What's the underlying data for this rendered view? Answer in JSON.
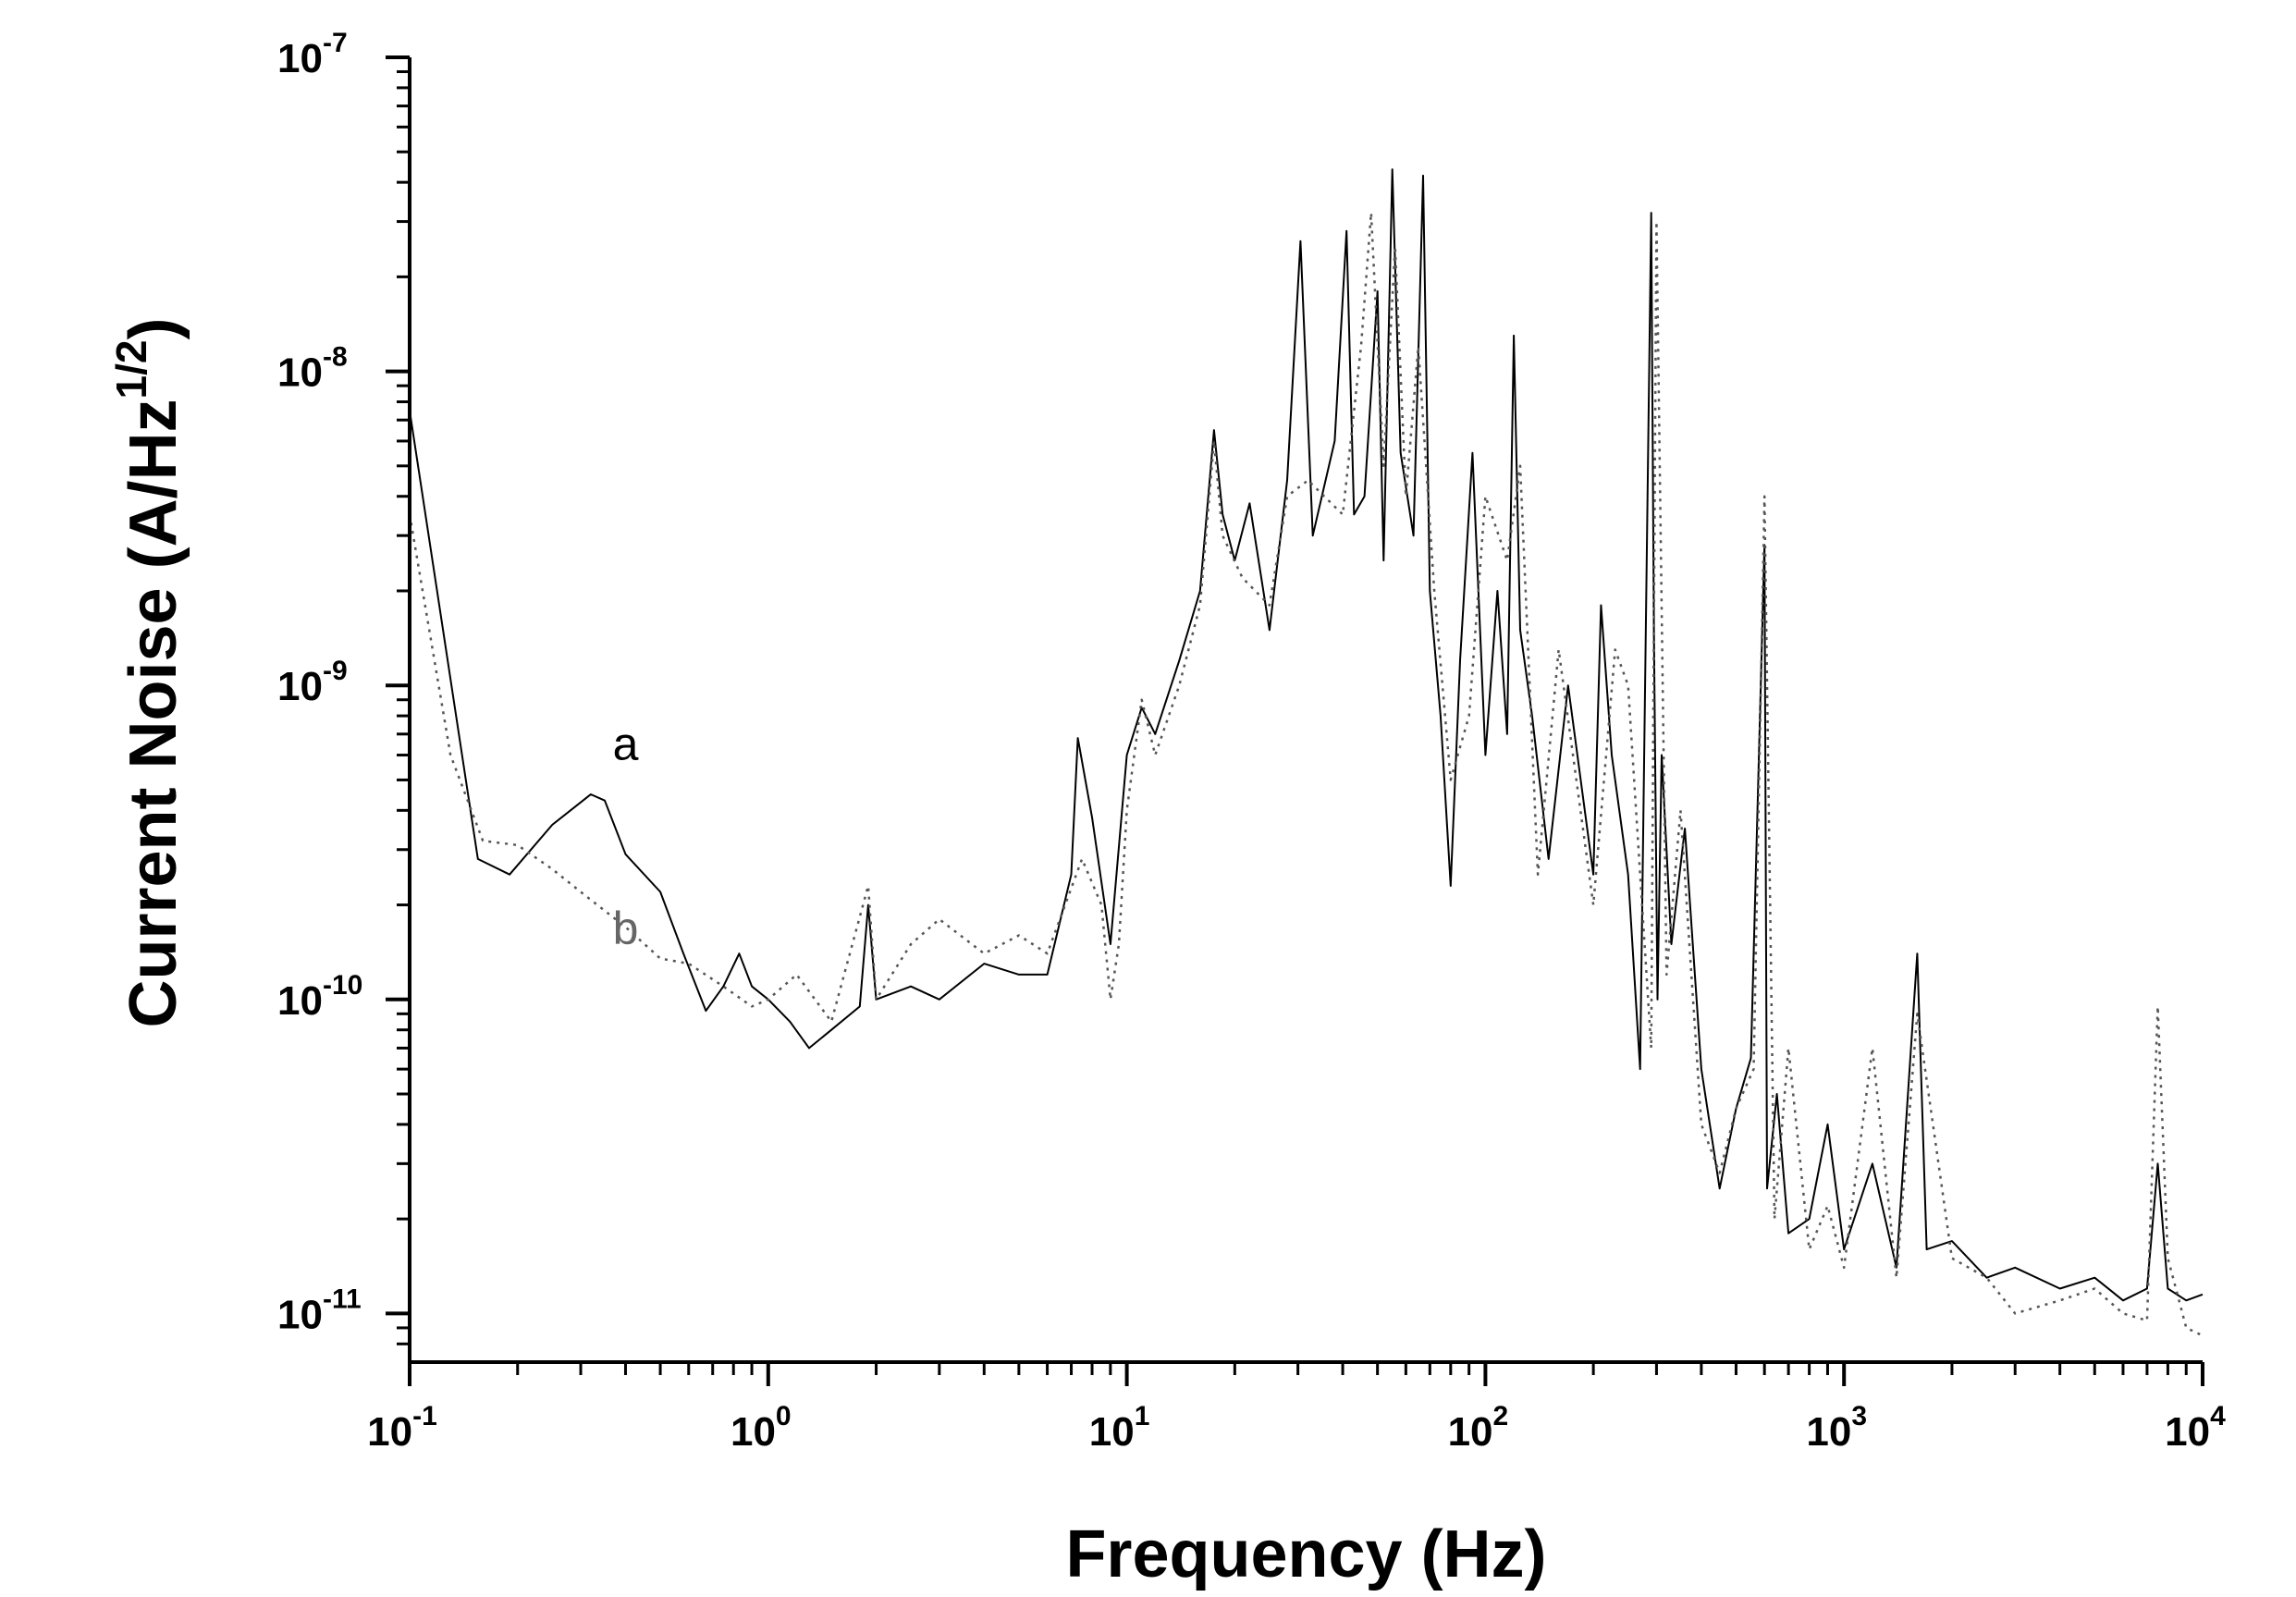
{
  "chart_data": {
    "type": "line",
    "title": "",
    "xlabel": "Frequency (Hz)",
    "ylabel": {
      "main": "Current Noise (A/Hz",
      "sup": "1/2",
      "close": ")"
    },
    "xscale": "log",
    "yscale": "log",
    "xlim": [
      0.1,
      10000
    ],
    "ylim": [
      7e-12,
      1e-07
    ],
    "grid": false,
    "legend": "none",
    "xticks": [
      {
        "value": 0.1,
        "base": "10",
        "exp": "-1"
      },
      {
        "value": 1,
        "base": "10",
        "exp": "0"
      },
      {
        "value": 10,
        "base": "10",
        "exp": "1"
      },
      {
        "value": 100,
        "base": "10",
        "exp": "2"
      },
      {
        "value": 1000,
        "base": "10",
        "exp": "3"
      },
      {
        "value": 10000,
        "base": "10",
        "exp": "4"
      }
    ],
    "yticks": [
      {
        "value": 1e-11,
        "base": "10",
        "exp": "-11"
      },
      {
        "value": 1e-10,
        "base": "10",
        "exp": "-10"
      },
      {
        "value": 1e-09,
        "base": "10",
        "exp": "-9"
      },
      {
        "value": 1e-08,
        "base": "10",
        "exp": "-8"
      },
      {
        "value": 1e-07,
        "base": "10",
        "exp": "-7"
      }
    ],
    "annotations": [
      {
        "text": "a",
        "x": 0.4,
        "y": 5.8e-10,
        "color": "#000000"
      },
      {
        "text": "b",
        "x": 0.4,
        "y": 1.5e-10,
        "color": "#666666"
      }
    ],
    "series": [
      {
        "name": "a",
        "style": "solid",
        "color": "#000000",
        "x": [
          0.1,
          0.155,
          0.19,
          0.25,
          0.32,
          0.35,
          0.4,
          0.5,
          0.58,
          0.67,
          0.75,
          0.83,
          0.9,
          1.0,
          1.15,
          1.3,
          1.5,
          1.8,
          1.9,
          2.0,
          2.5,
          3.0,
          4.0,
          5.0,
          6.0,
          7.0,
          7.3,
          8.0,
          9.0,
          10,
          11,
          12,
          14,
          16,
          17.5,
          18.5,
          20,
          22,
          25,
          28,
          30.5,
          33,
          38,
          41,
          43,
          46,
          50,
          52,
          55,
          58,
          63,
          67,
          70,
          75,
          80,
          85,
          92,
          100,
          108,
          115,
          120,
          125,
          135,
          150,
          170,
          200,
          210,
          225,
          250,
          270,
          290,
          295,
          302,
          310,
          330,
          360,
          400,
          450,
          500,
          550,
          600,
          610,
          650,
          700,
          800,
          900,
          1000,
          1200,
          1400,
          1600,
          1700,
          2000,
          2500,
          3000,
          4000,
          5000,
          6000,
          7000,
          7500,
          8000,
          9000,
          10000
        ],
        "y": [
          7.5e-09,
          2.8e-10,
          2.5e-10,
          3.6e-10,
          4.5e-10,
          4.3e-10,
          2.9e-10,
          2.2e-10,
          1.4e-10,
          9.2e-11,
          1.1e-10,
          1.4e-10,
          1.1e-10,
          1e-10,
          8.5e-11,
          7e-11,
          8e-11,
          9.5e-11,
          2e-10,
          1e-10,
          1.1e-10,
          1e-10,
          1.3e-10,
          1.2e-10,
          1.2e-10,
          2.5e-10,
          6.8e-10,
          3.8e-10,
          1.5e-10,
          6e-10,
          8.5e-10,
          7e-10,
          1.2e-09,
          2e-09,
          6.5e-09,
          3.5e-09,
          2.5e-09,
          3.8e-09,
          1.5e-09,
          4.5e-09,
          2.6e-08,
          3e-09,
          6e-09,
          2.8e-08,
          3.5e-09,
          4e-09,
          1.8e-08,
          2.5e-09,
          4.4e-08,
          5.5e-09,
          3e-09,
          4.2e-08,
          2e-09,
          8e-10,
          2.3e-10,
          1.2e-09,
          5.5e-09,
          6e-10,
          2e-09,
          7e-10,
          1.3e-08,
          1.5e-09,
          8e-10,
          2.8e-10,
          1e-09,
          2.5e-10,
          1.8e-09,
          6e-10,
          2.5e-10,
          6e-11,
          3.2e-08,
          1.5e-09,
          1e-10,
          6e-10,
          1.5e-10,
          3.5e-10,
          6e-11,
          2.5e-11,
          4.5e-11,
          6.5e-11,
          2.8e-09,
          2.5e-11,
          5e-11,
          1.8e-11,
          2e-11,
          4e-11,
          1.6e-11,
          3e-11,
          1.4e-11,
          1.4e-10,
          1.6e-11,
          1.7e-11,
          1.3e-11,
          1.4e-11,
          1.2e-11,
          1.3e-11,
          1.1e-11,
          1.2e-11,
          3e-11,
          1.2e-11,
          1.1e-11,
          1.15e-11
        ]
      },
      {
        "name": "b",
        "style": "dotted",
        "color": "#555555",
        "x": [
          0.1,
          0.13,
          0.16,
          0.2,
          0.25,
          0.3,
          0.4,
          0.5,
          0.6,
          0.75,
          0.9,
          1.0,
          1.2,
          1.5,
          1.9,
          2.0,
          2.5,
          3.0,
          4.0,
          5.0,
          6.0,
          7.5,
          8.5,
          9.0,
          9.5,
          10,
          11,
          12,
          14,
          16,
          17.5,
          18.5,
          21,
          25,
          28,
          32,
          40,
          45,
          48,
          52,
          56,
          60,
          65,
          72,
          80,
          90,
          100,
          115,
          125,
          140,
          160,
          200,
          230,
          250,
          290,
          300,
          320,
          350,
          400,
          450,
          500,
          560,
          600,
          640,
          700,
          800,
          900,
          1000,
          1200,
          1400,
          1600,
          2000,
          2500,
          3000,
          4000,
          5000,
          6000,
          7000,
          7500,
          8000,
          9000,
          10000
        ],
        "y": [
          3.5e-09,
          6e-10,
          3.2e-10,
          3.1e-10,
          2.6e-10,
          2.2e-10,
          1.7e-10,
          1.35e-10,
          1.3e-10,
          1.1e-10,
          9.5e-11,
          1e-10,
          1.2e-10,
          8.5e-11,
          2.3e-10,
          1e-10,
          1.5e-10,
          1.8e-10,
          1.4e-10,
          1.6e-10,
          1.4e-10,
          2.8e-10,
          2e-10,
          1e-10,
          1.5e-10,
          4e-10,
          9e-10,
          6e-10,
          1e-09,
          1.8e-09,
          6e-09,
          3e-09,
          2.2e-09,
          1.8e-09,
          4e-09,
          4.5e-09,
          3.5e-09,
          1.2e-08,
          3.2e-08,
          5e-09,
          2.5e-08,
          4e-09,
          1.2e-08,
          2e-09,
          5e-10,
          8e-10,
          4e-09,
          2.5e-09,
          5e-09,
          2.5e-10,
          1.3e-09,
          2e-10,
          1.3e-09,
          1e-09,
          7e-11,
          3e-08,
          1.2e-10,
          4e-10,
          4e-11,
          2.8e-11,
          4.5e-11,
          6e-11,
          4e-09,
          2e-11,
          7e-11,
          1.6e-11,
          2.2e-11,
          1.4e-11,
          7e-11,
          1.3e-11,
          9e-11,
          1.5e-11,
          1.3e-11,
          1e-11,
          1.1e-11,
          1.2e-11,
          1e-11,
          9.5e-12,
          9.5e-11,
          1.5e-11,
          9e-12,
          8.5e-12
        ]
      }
    ]
  }
}
